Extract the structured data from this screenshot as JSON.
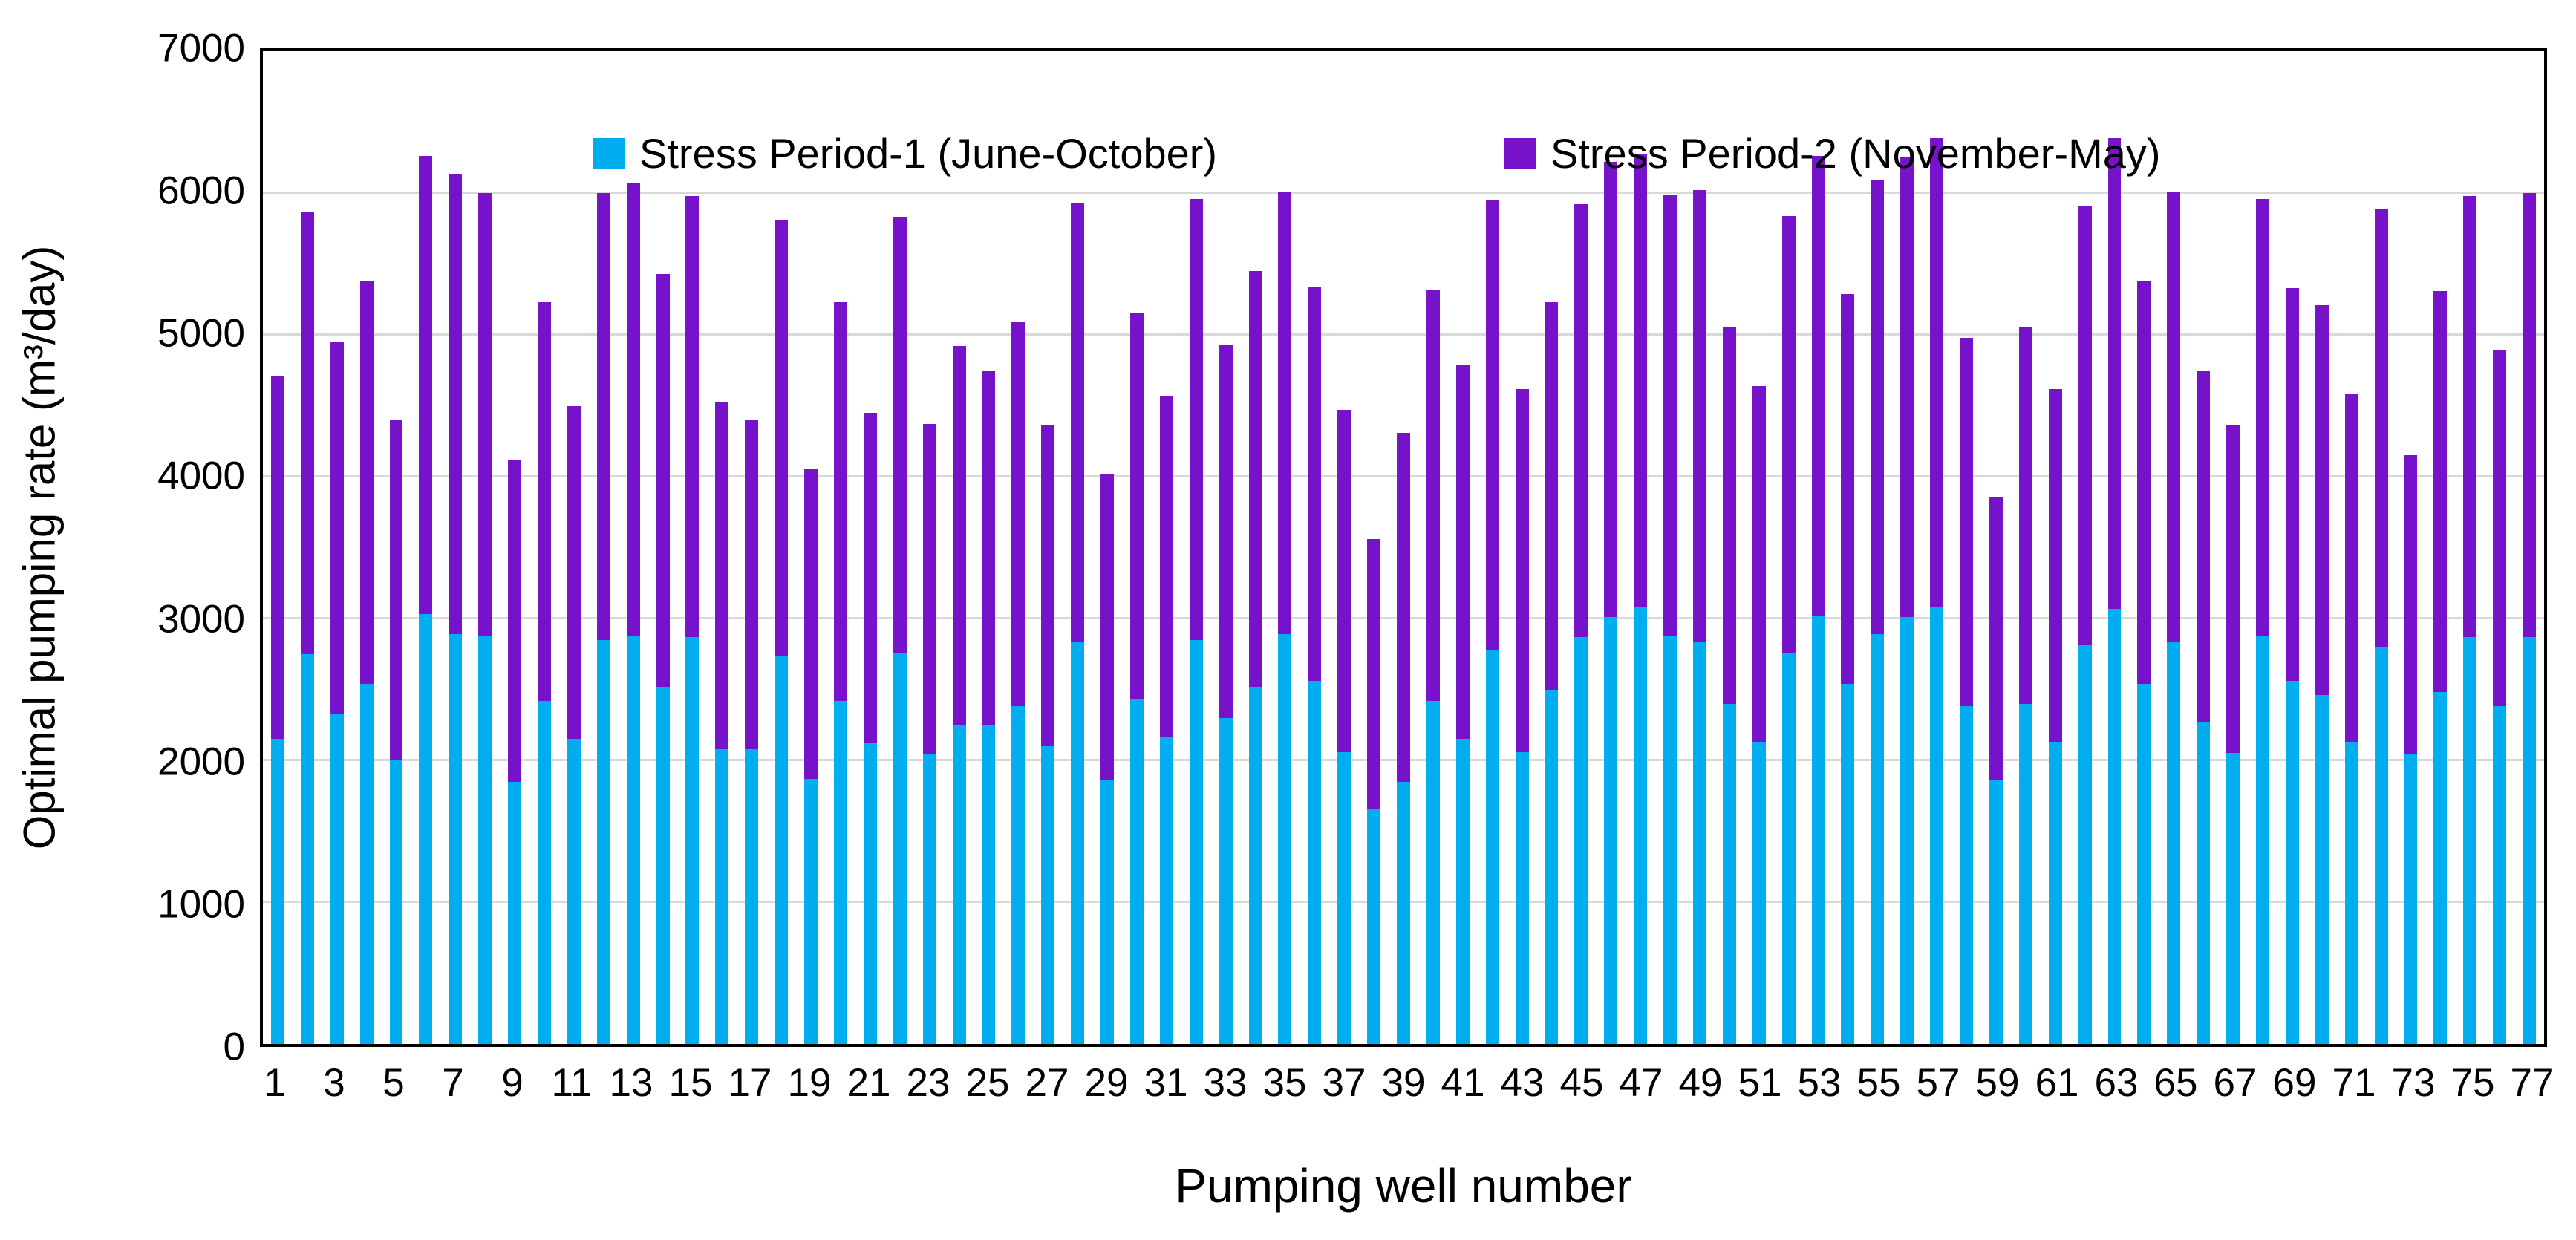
{
  "figure": {
    "background": "#ffffff",
    "plot_border_color": "#000000",
    "gridline_color": "#d9d9d9"
  },
  "chart_data": {
    "type": "bar",
    "stacked": true,
    "title": "",
    "xlabel": "Pumping well number",
    "ylabel": "Optimal pumping rate (m³/day)",
    "ylim": [
      0,
      7000
    ],
    "grid": "horizontal",
    "legend_position": "top-inside",
    "yticks": [
      0,
      1000,
      2000,
      3000,
      4000,
      5000,
      6000,
      7000
    ],
    "xtick_labels": [
      1,
      3,
      5,
      7,
      9,
      11,
      13,
      15,
      17,
      19,
      21,
      23,
      25,
      27,
      29,
      31,
      33,
      35,
      37,
      39,
      41,
      43,
      45,
      47,
      49,
      51,
      53,
      55,
      57,
      59,
      61,
      63,
      65,
      67,
      69,
      71,
      73,
      75,
      77
    ],
    "categories": [
      1,
      2,
      3,
      4,
      5,
      6,
      7,
      8,
      9,
      10,
      11,
      12,
      13,
      14,
      15,
      16,
      17,
      18,
      19,
      20,
      21,
      22,
      23,
      24,
      25,
      26,
      27,
      28,
      29,
      30,
      31,
      32,
      33,
      34,
      35,
      36,
      37,
      38,
      39,
      40,
      41,
      42,
      43,
      44,
      45,
      46,
      47,
      48,
      49,
      50,
      51,
      52,
      53,
      54,
      55,
      56,
      57,
      58,
      59,
      60,
      61,
      62,
      63,
      64,
      65,
      66,
      67,
      68,
      69,
      70,
      71,
      72,
      73,
      74,
      75,
      76,
      77
    ],
    "series": [
      {
        "name": "Stress Period-1 (June-October)",
        "color": "#00aef0",
        "values": [
          2150,
          2750,
          2330,
          2540,
          2000,
          3030,
          2890,
          2880,
          1850,
          2420,
          2150,
          2850,
          2880,
          2520,
          2870,
          2080,
          2080,
          2740,
          1870,
          2420,
          2120,
          2760,
          2040,
          2250,
          2250,
          2380,
          2100,
          2840,
          1860,
          2430,
          2160,
          2850,
          2300,
          2520,
          2890,
          2560,
          2060,
          1660,
          1850,
          2420,
          2150,
          2780,
          2060,
          2500,
          2870,
          3010,
          3080,
          2880,
          2840,
          2400,
          2130,
          2760,
          3020,
          2540,
          2890,
          3010,
          3080,
          2380,
          1860,
          2400,
          2130,
          2810,
          3070,
          2540,
          2840,
          2270,
          2050,
          2880,
          2560,
          2460,
          2130,
          2800,
          2040,
          2480,
          2870,
          2380,
          2870
        ]
      },
      {
        "name": "Stress Period-2 (November-May)",
        "color": "#7712cb",
        "values": [
          2560,
          3120,
          2620,
          2840,
          2400,
          3230,
          3240,
          3120,
          2270,
          2810,
          2350,
          3150,
          3190,
          2910,
          3110,
          2450,
          2320,
          3070,
          2190,
          2810,
          2330,
          3070,
          2330,
          2670,
          2500,
          2710,
          2260,
          3090,
          2160,
          2720,
          2410,
          3110,
          2630,
          2930,
          3120,
          2780,
          2410,
          1900,
          2460,
          2900,
          2640,
          3170,
          2560,
          2730,
          3050,
          3210,
          3190,
          3110,
          3180,
          2660,
          2510,
          3080,
          3240,
          2750,
          3200,
          3240,
          3310,
          2600,
          2000,
          2660,
          2490,
          3100,
          3320,
          2840,
          3170,
          2480,
          2310,
          3080,
          2770,
          2750,
          2450,
          3090,
          2110,
          2830,
          3110,
          2510,
          3130
        ]
      }
    ]
  }
}
